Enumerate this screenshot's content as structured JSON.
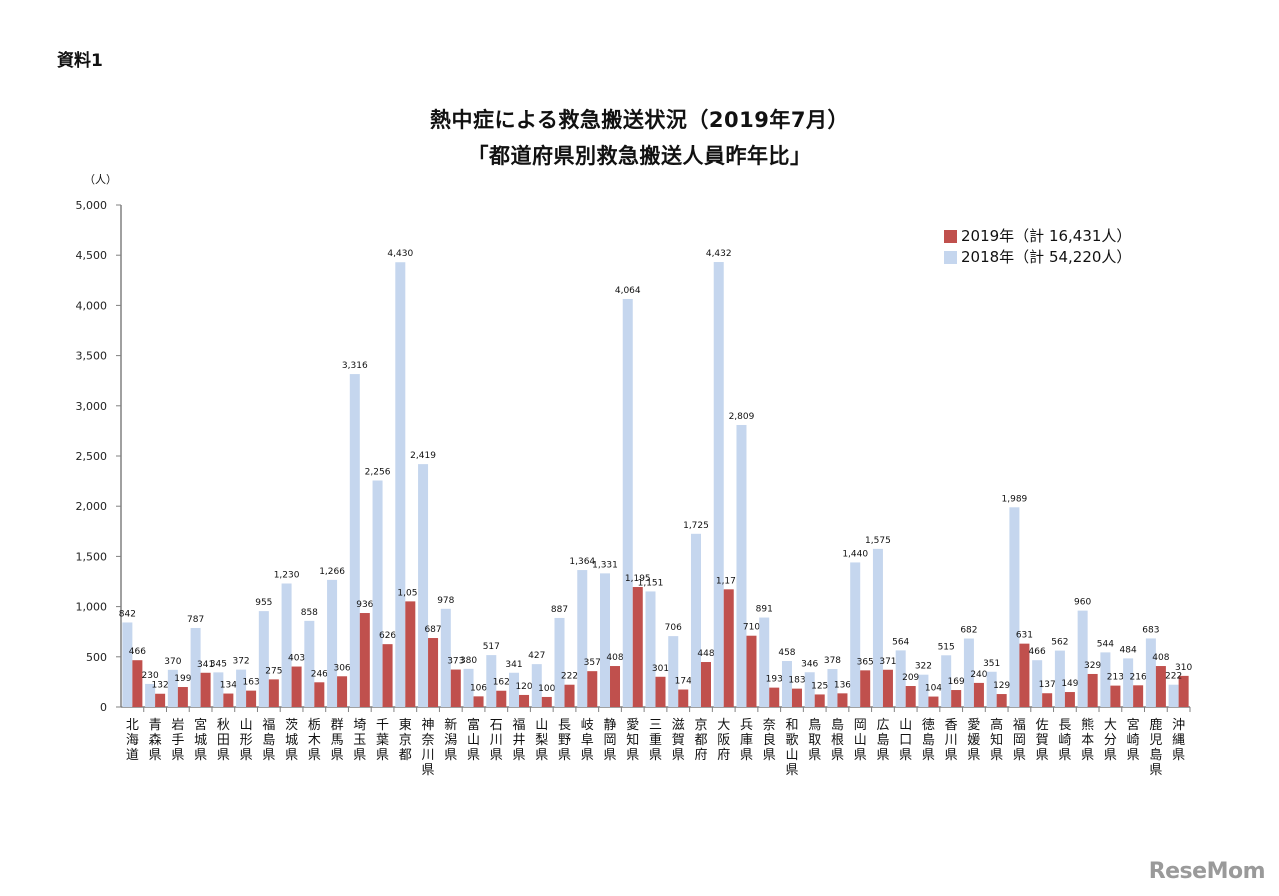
{
  "document_label": "資料1",
  "title_line1": "熱中症による救急搬送状況（2019年7月）",
  "title_line2": "「都道府県別救急搬送人員昨年比」",
  "watermark": "ReseMom",
  "colors": {
    "series_2019": "#c0504d",
    "series_2018": "#c5d6ee",
    "axis": "#808080"
  },
  "chart_data": {
    "type": "bar",
    "title": "熱中症による救急搬送状況（2019年7月）「都道府県別救急搬送人員昨年比」",
    "xlabel": "",
    "ylabel": "（人）",
    "ylim": [
      0,
      5000
    ],
    "yticks": [
      0,
      500,
      1000,
      1500,
      2000,
      2500,
      3000,
      3500,
      4000,
      4500,
      5000
    ],
    "ytick_labels": [
      "0",
      "500",
      "1,000",
      "1,500",
      "2,000",
      "2,500",
      "3,000",
      "3,500",
      "4,000",
      "4,500",
      "5,000"
    ],
    "grid": false,
    "legend_position": "top-right",
    "categories": [
      "北海道",
      "青森県",
      "岩手県",
      "宮城県",
      "秋田県",
      "山形県",
      "福島県",
      "茨城県",
      "栃木県",
      "群馬県",
      "埼玉県",
      "千葉県",
      "東京都",
      "神奈川県",
      "新潟県",
      "富山県",
      "石川県",
      "福井県",
      "山梨県",
      "長野県",
      "岐阜県",
      "静岡県",
      "愛知県",
      "三重県",
      "滋賀県",
      "京都府",
      "大阪府",
      "兵庫県",
      "奈良県",
      "和歌山県",
      "鳥取県",
      "島根県",
      "岡山県",
      "広島県",
      "山口県",
      "徳島県",
      "香川県",
      "愛媛県",
      "高知県",
      "福岡県",
      "佐賀県",
      "長崎県",
      "熊本県",
      "大分県",
      "宮崎県",
      "鹿児島県",
      "沖縄県"
    ],
    "series": [
      {
        "name": "2018年（計 54,220人）",
        "values": [
          842,
          230,
          370,
          787,
          345,
          372,
          955,
          1230,
          858,
          1266,
          3316,
          2256,
          4430,
          2419,
          978,
          380,
          517,
          341,
          427,
          887,
          1364,
          1331,
          4064,
          1151,
          706,
          1725,
          4432,
          2809,
          891,
          458,
          346,
          378,
          1440,
          1575,
          564,
          322,
          515,
          682,
          351,
          1989,
          466,
          562,
          960,
          544,
          484,
          683,
          222
        ]
      },
      {
        "name": "2019年（計 16,431人）",
        "values": [
          466,
          132,
          199,
          341,
          134,
          163,
          275,
          403,
          246,
          306,
          936,
          626,
          1052,
          687,
          373,
          106,
          162,
          120,
          100,
          222,
          357,
          408,
          1195,
          301,
          174,
          448,
          1172,
          710,
          193,
          183,
          125,
          136,
          365,
          371,
          209,
          104,
          169,
          240,
          129,
          631,
          137,
          149,
          329,
          213,
          216,
          408,
          310
        ]
      }
    ]
  },
  "legend": [
    {
      "label": "2019年（計 16,431人）",
      "color": "#c0504d"
    },
    {
      "label": "2018年（計 54,220人）",
      "color": "#c5d6ee"
    }
  ]
}
